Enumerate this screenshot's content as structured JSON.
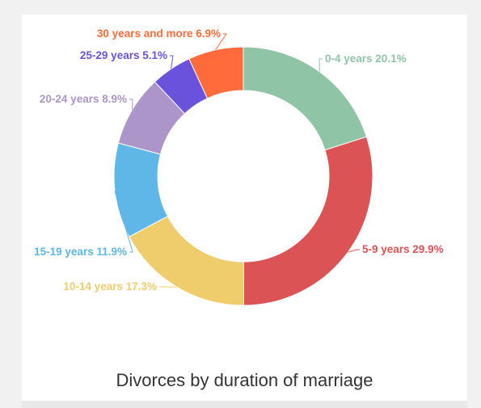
{
  "chart_data": {
    "type": "pie",
    "variant": "donut",
    "title": "Divorces by duration of marriage",
    "unit": "%",
    "slices": [
      {
        "label": "0-4 years",
        "value": 20.1,
        "color": "#8fc4a7"
      },
      {
        "label": "5-9 years",
        "value": 29.9,
        "color": "#dc5356"
      },
      {
        "label": "10-14 years",
        "value": 17.3,
        "color": "#f0cd6c"
      },
      {
        "label": "15-19 years",
        "value": 11.9,
        "color": "#5eb7e6"
      },
      {
        "label": "20-24 years",
        "value": 8.9,
        "color": "#ab95c9"
      },
      {
        "label": "25-29 years",
        "value": 5.1,
        "color": "#6b52dc"
      },
      {
        "label": "30 years and more",
        "value": 6.9,
        "color": "#ff6b3b"
      }
    ],
    "grid": false,
    "legend": "none"
  }
}
